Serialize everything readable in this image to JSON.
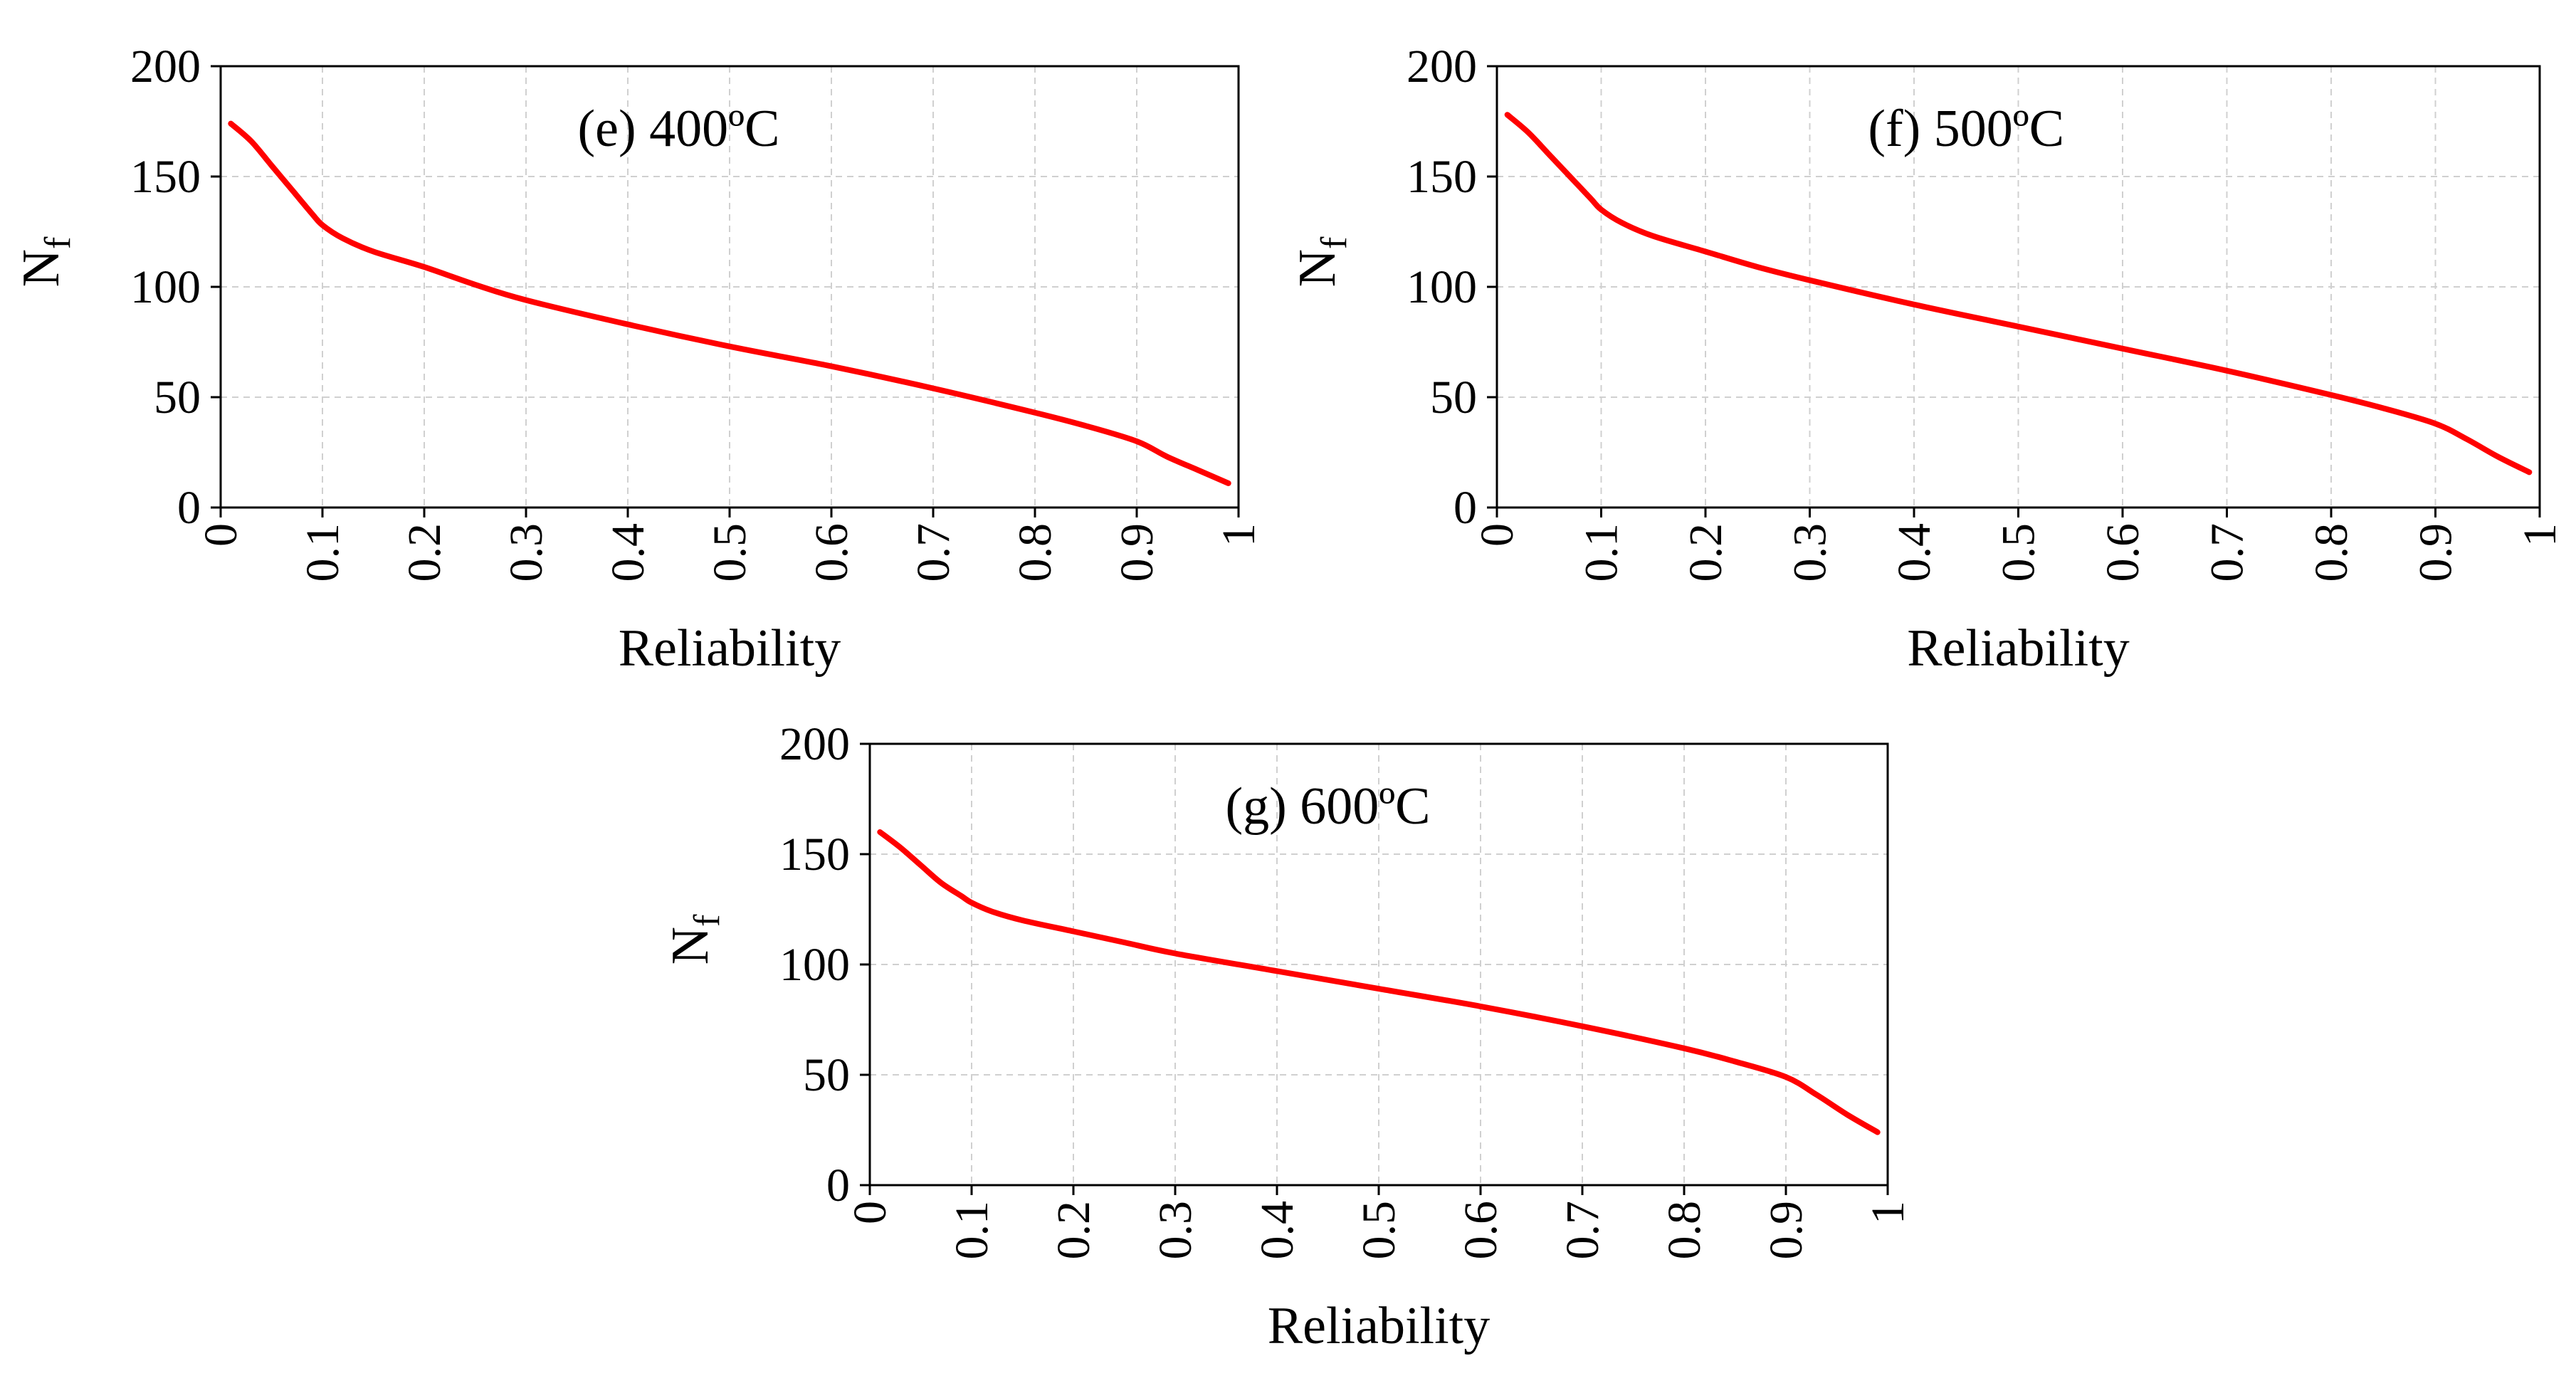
{
  "figure": {
    "colors": {
      "series": "#ff0000",
      "grid": "#d0d0d0",
      "axes": "#000000"
    }
  },
  "chart_data": [
    {
      "type": "line",
      "title": "(e) 400ºC",
      "xlabel": "Reliability",
      "ylabel": "N",
      "ylabel_subscript": "f",
      "xlim": [
        0,
        1
      ],
      "ylim": [
        0,
        200
      ],
      "xticks": [
        "0",
        "0.1",
        "0.2",
        "0.3",
        "0.4",
        "0.5",
        "0.6",
        "0.7",
        "0.8",
        "0.9",
        "1"
      ],
      "yticks": [
        "0",
        "50",
        "100",
        "150",
        "200"
      ],
      "grid": true,
      "series": [
        {
          "name": "400ºC",
          "x": [
            0.01,
            0.03,
            0.05,
            0.07,
            0.09,
            0.1,
            0.12,
            0.15,
            0.2,
            0.25,
            0.3,
            0.4,
            0.5,
            0.6,
            0.7,
            0.8,
            0.85,
            0.9,
            0.93,
            0.96,
            0.99
          ],
          "values": [
            174,
            166,
            155,
            144,
            133,
            128,
            122,
            116,
            109,
            101,
            94,
            83,
            73,
            64,
            54,
            43,
            37,
            30,
            23,
            17,
            11
          ]
        }
      ]
    },
    {
      "type": "line",
      "title": "(f) 500ºC",
      "xlabel": "Reliability",
      "ylabel": "N",
      "ylabel_subscript": "f",
      "xlim": [
        0,
        1
      ],
      "ylim": [
        0,
        200
      ],
      "xticks": [
        "0",
        "0.1",
        "0.2",
        "0.3",
        "0.4",
        "0.5",
        "0.6",
        "0.7",
        "0.8",
        "0.9",
        "1"
      ],
      "yticks": [
        "0",
        "50",
        "100",
        "150",
        "200"
      ],
      "grid": true,
      "series": [
        {
          "name": "500ºC",
          "x": [
            0.01,
            0.03,
            0.05,
            0.07,
            0.09,
            0.1,
            0.12,
            0.15,
            0.2,
            0.25,
            0.3,
            0.4,
            0.5,
            0.6,
            0.7,
            0.8,
            0.85,
            0.9,
            0.93,
            0.96,
            0.99
          ],
          "values": [
            178,
            170,
            160,
            150,
            140,
            135,
            129,
            123,
            116,
            109,
            103,
            92,
            82,
            72,
            62,
            51,
            45,
            38,
            31,
            23,
            16
          ]
        }
      ]
    },
    {
      "type": "line",
      "title": "(g) 600ºC",
      "xlabel": "Reliability",
      "ylabel": "N",
      "ylabel_subscript": "f",
      "xlim": [
        0,
        1
      ],
      "ylim": [
        0,
        200
      ],
      "xticks": [
        "0",
        "0.1",
        "0.2",
        "0.3",
        "0.4",
        "0.5",
        "0.6",
        "0.7",
        "0.8",
        "0.9",
        "1"
      ],
      "yticks": [
        "0",
        "50",
        "100",
        "150",
        "200"
      ],
      "grid": true,
      "series": [
        {
          "name": "600ºC",
          "x": [
            0.01,
            0.03,
            0.05,
            0.07,
            0.09,
            0.1,
            0.12,
            0.15,
            0.2,
            0.25,
            0.3,
            0.4,
            0.5,
            0.6,
            0.7,
            0.8,
            0.85,
            0.9,
            0.93,
            0.96,
            0.99
          ],
          "values": [
            160,
            153,
            145,
            137,
            131,
            128,
            124,
            120,
            115,
            110,
            105,
            97,
            89,
            81,
            72,
            62,
            56,
            49,
            41,
            32,
            24
          ]
        }
      ]
    }
  ]
}
